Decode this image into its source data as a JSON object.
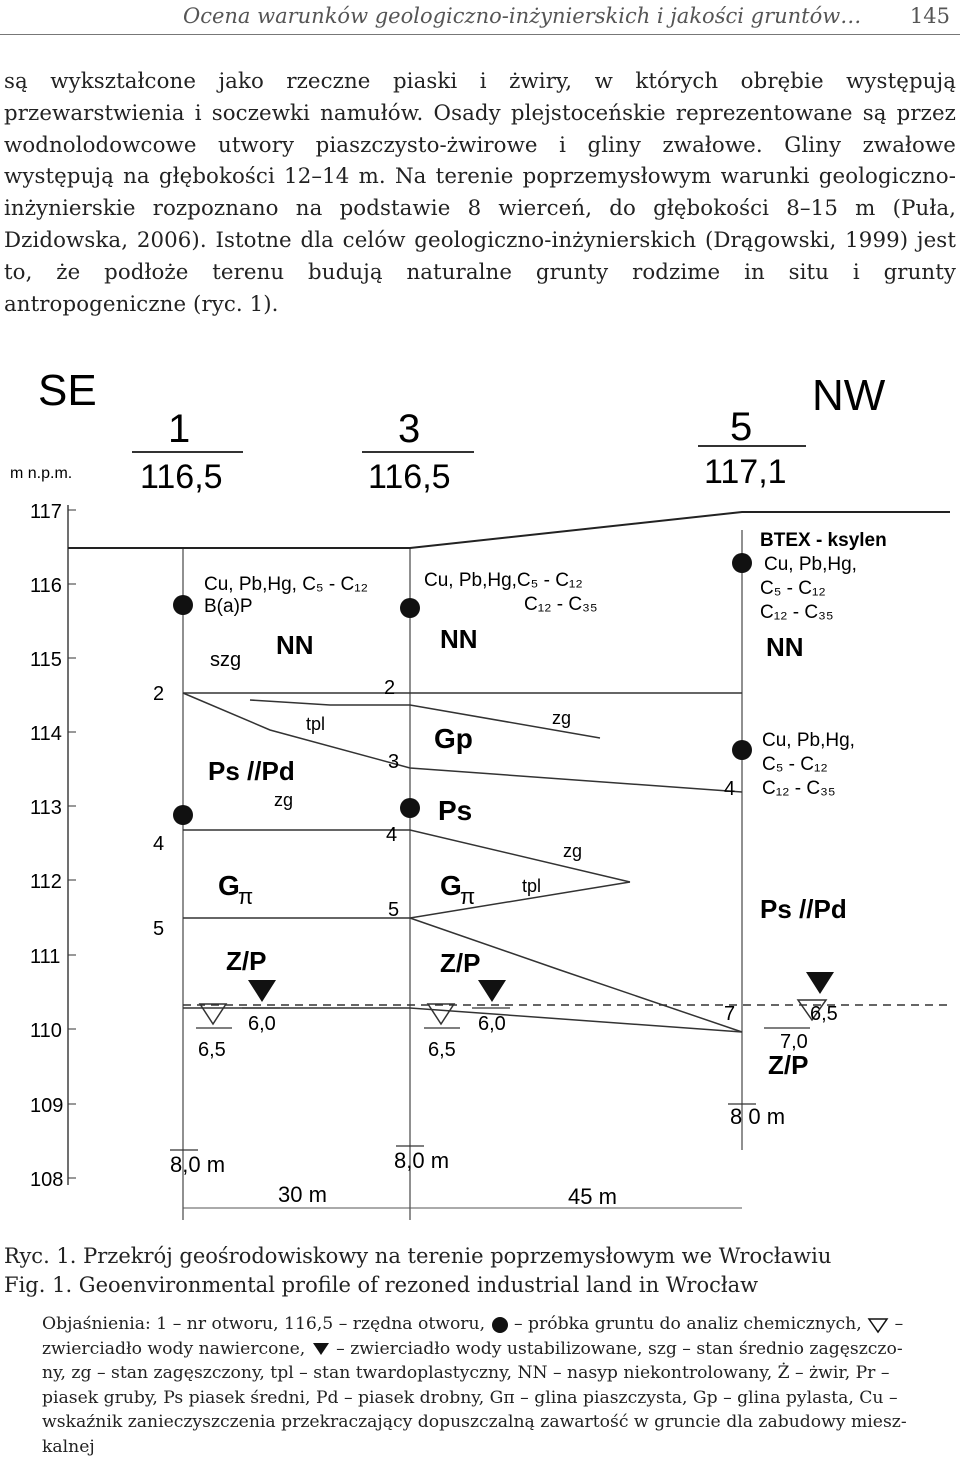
{
  "header": {
    "title": "Ocena warunków geologiczno-inżynierskich i jakości gruntów…",
    "page_number": "145"
  },
  "body_text": "są wykształcone jako rzeczne piaski i żwiry, w których obrębie występują przewarstwienia i soczewki namułów. Osady plejstoceńskie reprezentowane są przez wodnolodowcowe utwory piaszczysto-żwirowe i gliny zwałowe. Gliny zwałowe występują na głębokości 12–14 m. Na terenie poprzemysłowym warunki geologiczno-inżynierskie rozpoznano na podstawie 8 wierceń, do głębokości 8–15 m (Puła, Dzidowska, 2006). Istotne dla celów geologiczno-inżynierskich (Drągowski, 1999) jest to, że podłoże terenu budują naturalne grunty rodzime in situ i grunty antropogeniczne (ryc. 1).",
  "figure": {
    "dir_left": "SE",
    "dir_right": "NW",
    "elev_unit": "m n.p.m.",
    "elev_ticks": [
      "117",
      "116",
      "115",
      "114",
      "113",
      "112",
      "111",
      "110",
      "109",
      "108"
    ],
    "boreholes": [
      {
        "id": "1",
        "elev": "116,5",
        "samples": "Cu, Pb,Hg, C₅ - C₁₂",
        "samples2": "B(a)P",
        "depth": "8,0 m",
        "wl_sym": "6,5",
        "wl_stab": "6,0"
      },
      {
        "id": "3",
        "elev": "116,5",
        "samples": "Cu, Pb,Hg,C₅ - C₁₂",
        "samples2": "C₁₂ - C₃₅",
        "depth": "8,0 m",
        "wl_sym": "6,5",
        "wl_stab": "6,0"
      },
      {
        "id": "5",
        "elev": "117,1",
        "samples_top_label": "BTEX - ksylen",
        "samples": "Cu, Pb,Hg,",
        "samples2": "C₅ - C₁₂",
        "samples3": "C₁₂ - C₃₅",
        "samples_lower": "Cu, Pb,Hg,",
        "samples_lower2": "C₅ - C₁₂",
        "samples_lower3": "C₁₂ - C₃₅",
        "depth": "8 0 m",
        "wl_sym": "7,0",
        "wl_stab": "6,5"
      }
    ],
    "layer_labels": {
      "szg": "szg",
      "NN": "NN",
      "tpl": "tpl",
      "zg": "zg",
      "PsPd": "Ps //Pd",
      "Gp": "Gp",
      "Ps": "Ps",
      "G": "G",
      "pi": "π",
      "ZP": "Z/P"
    },
    "depth_marks": {
      "d2": "2",
      "d3": "3",
      "d4": "4",
      "d5": "5",
      "d7": "7"
    },
    "distances": [
      "30 m",
      "45 m"
    ]
  },
  "caption_pl": "Ryc. 1. Przekrój geośrodowiskowy na terenie poprzemysłowym we Wrocławiu",
  "caption_en": "Fig. 1. Geoenvironmental profile of rezoned industrial land in Wrocław",
  "legend": {
    "l1a": "Objaśnienia: 1 – nr otworu, 116,5 – rzędna otworu,",
    "l1b": "– próbka gruntu do analiz chemicznych,",
    "l1c": "–",
    "l2a": "zwierciadło wody nawiercone,",
    "l2b": "– zwierciadło wody ustabilizowane, szg – stan średnio zagęszczo-",
    "l3": "ny, zg – stan zagęszczony, tpl – stan twardoplastyczny, NN – nasyp niekontrolowany, Ż – żwir, Pr –",
    "l4": "piasek gruby, Ps piasek średni, Pd – piasek drobny, Gπ – glina piaszczysta, Gp – glina pylasta, Cu –",
    "l5": "wskaźnik zanieczyszczenia przekraczający dopuszczalną zawartość w gruncie dla zabudowy miesz-",
    "l6": "kalnej"
  }
}
